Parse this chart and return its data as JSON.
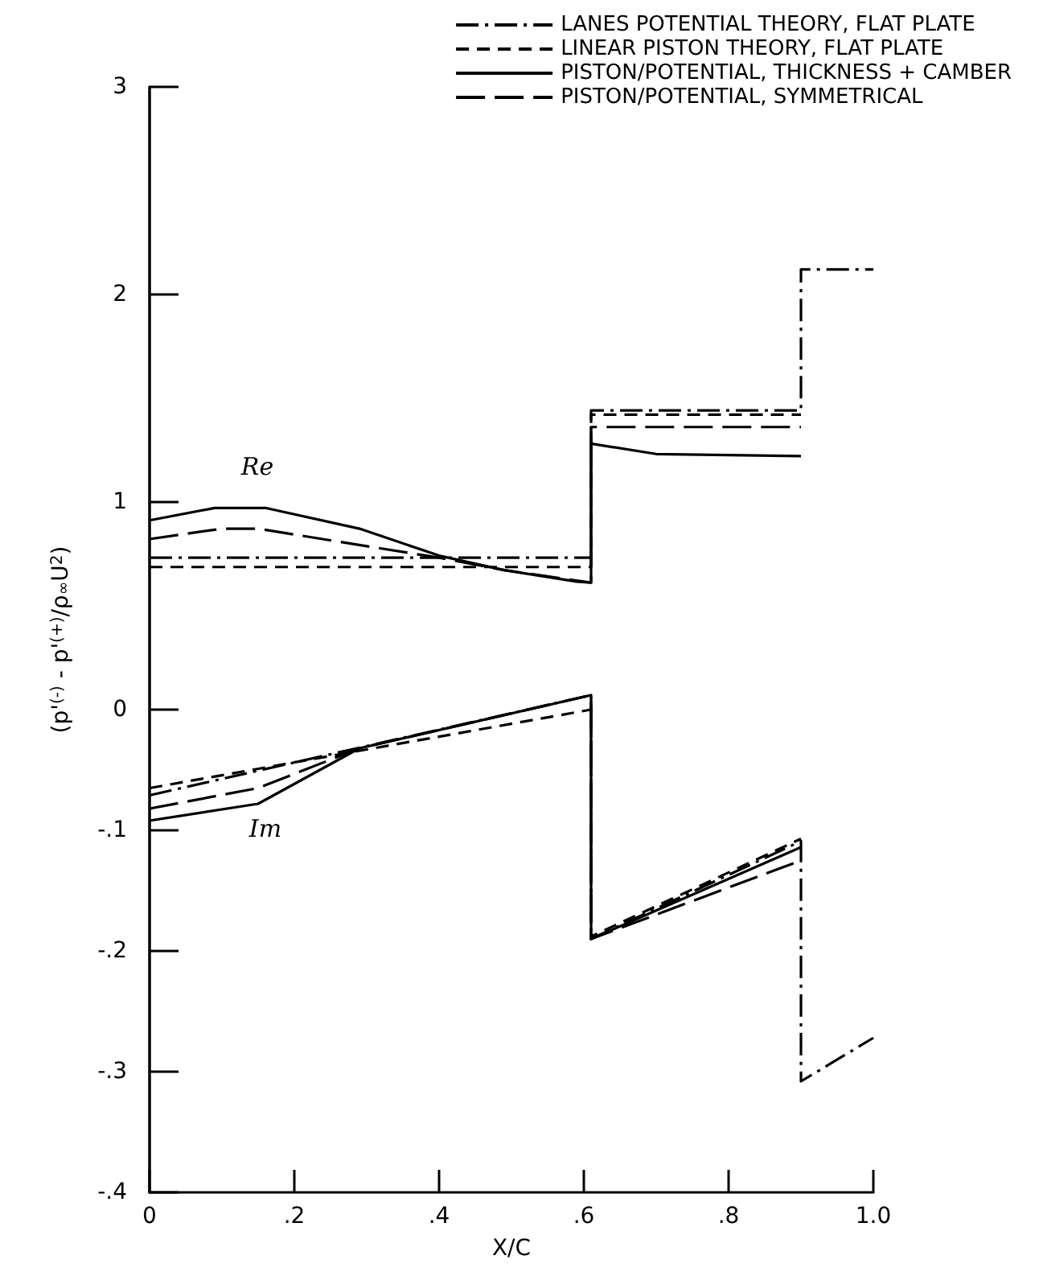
{
  "chart_data": {
    "type": "line",
    "xlabel": "X/C",
    "ylabel": "(p'$^{(-)}$ - p'$^{(+)}$/ρ$_{∞}$U$^{2}$)",
    "xlim": [
      0,
      1
    ],
    "xticks": [
      0,
      {
        "value": 0.2,
        "label": ".2"
      },
      {
        "value": 0.4,
        "label": ".4"
      },
      {
        "value": 0.6,
        "label": ".6"
      },
      {
        "value": 0.8,
        "label": ".8"
      },
      {
        "value": 1,
        "label": "1.0"
      }
    ],
    "ylim": [
      -2.33,
      3
    ],
    "yticks": [
      1,
      2,
      3
    ],
    "y2lim": [
      -0.4,
      0.516
    ],
    "y2ticks": [
      0,
      {
        "value": -0.1,
        "label": "-.1"
      },
      {
        "value": -0.2,
        "label": "-.2"
      },
      {
        "value": -0.3,
        "label": "-.3"
      },
      {
        "value": -0.4,
        "label": "-.4"
      }
    ],
    "grid": false,
    "legend": "top right",
    "marker": "none",
    "annotations": [
      "Re",
      "Im"
    ],
    "series": [
      {
        "name": "LANES POTENTIAL THEORY, FLAT PLATE",
        "color": "#000000",
        "line_style": "dashdot",
        "x": [
          0,
          0.61,
          0.61,
          0.9,
          0.9,
          1.0
        ],
        "values": [
          0.73,
          0.73,
          1.44,
          1.44,
          2.12,
          2.12
        ]
      },
      {
        "name": "LINEAR PISTON THEORY, FLAT PLATE",
        "color": "#000000",
        "line_style": "dashed",
        "x": [
          0,
          0.61,
          0.61,
          0.9
        ],
        "values": [
          0.685,
          0.685,
          1.42,
          1.42
        ]
      },
      {
        "name": "PISTON/POTENTIAL, THICKNESS + CAMBER",
        "color": "#000000",
        "line_style": "solid",
        "x": [
          0,
          0.09,
          0.16,
          0.29,
          0.4,
          0.49,
          0.59,
          0.61,
          0.61,
          0.7,
          0.9
        ],
        "values": [
          0.91,
          0.97,
          0.97,
          0.87,
          0.74,
          0.67,
          0.615,
          0.61,
          1.28,
          1.23,
          1.22
        ]
      },
      {
        "name": "PISTON/POTENTIAL, SYMMETRICAL",
        "color": "#000000",
        "line_style": "longdash",
        "x": [
          0,
          0.1,
          0.15,
          0.31,
          0.4,
          0.49,
          0.61,
          0.61,
          0.9
        ],
        "values": [
          0.82,
          0.87,
          0.87,
          0.78,
          0.73,
          0.67,
          0.61,
          1.36,
          1.36
        ]
      },
      {
        "color": "#000000",
        "line_style": "dashdot",
        "axis": "y2",
        "x": [
          0,
          0.61,
          0.61,
          0.9,
          0.9,
          1.0
        ],
        "values": [
          -0.071,
          0.012,
          -0.19,
          -0.109,
          -0.308,
          -0.272
        ]
      },
      {
        "color": "#000000",
        "line_style": "dashed",
        "axis": "y2",
        "x": [
          0,
          0.61,
          0.61,
          0.9
        ],
        "values": [
          -0.065,
          0.0,
          -0.188,
          -0.107
        ]
      },
      {
        "color": "#000000",
        "line_style": "solid",
        "axis": "y2",
        "x": [
          0,
          0.15,
          0.29,
          0.61,
          0.61,
          0.9
        ],
        "values": [
          -0.092,
          -0.078,
          -0.032,
          0.012,
          -0.19,
          -0.114
        ]
      },
      {
        "color": "#000000",
        "line_style": "longdash",
        "axis": "y2",
        "x": [
          0,
          0.15,
          0.29,
          0.61,
          0.61,
          0.9
        ],
        "values": [
          -0.082,
          -0.065,
          -0.032,
          0.012,
          -0.19,
          -0.125
        ]
      }
    ]
  }
}
